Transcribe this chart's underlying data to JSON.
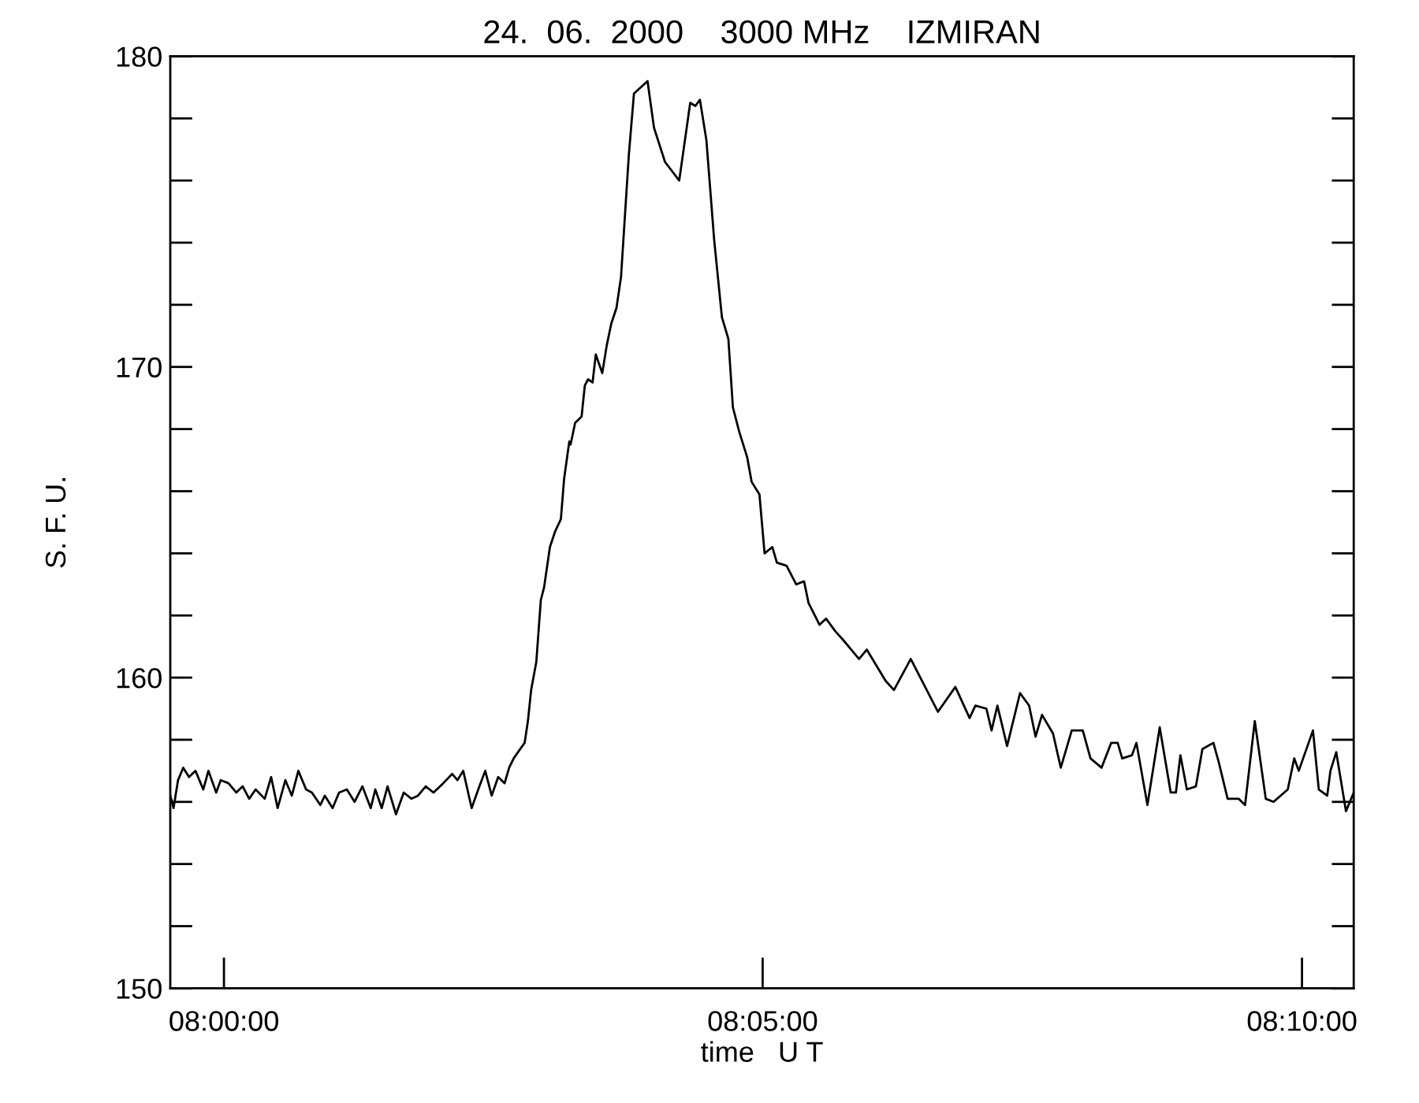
{
  "chart_data": {
    "type": "line",
    "title": "24.  06.  2000    3000 MHz    IZMIRAN",
    "xlabel": "time   U T",
    "ylabel": "S. F. U.",
    "xlim": [
      7.9917,
      8.1747
    ],
    "xticks": [
      {
        "value": 8.0,
        "label": "08:00:00"
      },
      {
        "value": 8.0833,
        "label": "08:05:00"
      },
      {
        "value": 8.1667,
        "label": "08:10:00"
      }
    ],
    "ylim": [
      150,
      180
    ],
    "yticks": [
      150,
      {
        "value": 152,
        "label": null
      },
      {
        "value": 154,
        "label": null
      },
      {
        "value": 156,
        "label": null
      },
      {
        "value": 158,
        "label": null
      },
      160,
      {
        "value": 162,
        "label": null
      },
      {
        "value": 164,
        "label": null
      },
      {
        "value": 166,
        "label": null
      },
      {
        "value": 168,
        "label": null
      },
      170,
      {
        "value": 172,
        "label": null
      },
      {
        "value": 174,
        "label": null
      },
      {
        "value": 176,
        "label": null
      },
      {
        "value": 178,
        "label": null
      },
      180
    ],
    "grid": false,
    "marker": "none",
    "line_style": "solid",
    "series": [
      {
        "color": "#000000",
        "x": [
          7.9917,
          7.9922,
          7.9929,
          7.9937,
          7.9946,
          7.9956,
          7.9968,
          7.9976,
          7.9988,
          7.9995,
          8.0007,
          8.0019,
          8.0029,
          8.0039,
          8.0049,
          8.0063,
          8.0073,
          8.0083,
          8.0095,
          8.0105,
          8.0115,
          8.0127,
          8.0136,
          8.0149,
          8.0156,
          8.0168,
          8.0178,
          8.019,
          8.0202,
          8.0214,
          8.0227,
          8.0234,
          8.0244,
          8.0253,
          8.0266,
          8.0278,
          8.029,
          8.03,
          8.0312,
          8.0324,
          8.0339,
          8.0353,
          8.0361,
          8.037,
          8.0383,
          8.0395,
          8.0404,
          8.0414,
          8.0424,
          8.0434,
          8.0441,
          8.0448,
          8.0458,
          8.0465,
          8.047,
          8.0475,
          8.0483,
          8.049,
          8.0495,
          8.0504,
          8.0512,
          8.0521,
          8.0526,
          8.0534,
          8.0536,
          8.0543,
          8.0553,
          8.0558,
          8.0563,
          8.057,
          8.0575,
          8.0585,
          8.0592,
          8.0599,
          8.0607,
          8.0614,
          8.0626,
          8.0634,
          8.0655,
          8.0665,
          8.0682,
          8.0704,
          8.0721,
          8.0729,
          8.0736,
          8.0746,
          8.0758,
          8.077,
          8.078,
          8.0787,
          8.0797,
          8.0809,
          8.0816,
          8.0828,
          8.0836,
          8.0848,
          8.0855,
          8.087,
          8.0885,
          8.0897,
          8.0904,
          8.0921,
          8.0931,
          8.0945,
          8.0958,
          8.097,
          8.0982,
          8.0994,
          8.1023,
          8.1036,
          8.1062,
          8.1104,
          8.1131,
          8.1153,
          8.1162,
          8.1179,
          8.1187,
          8.1196,
          8.1211,
          8.1231,
          8.1245,
          8.1255,
          8.1265,
          8.1282,
          8.1294,
          8.1311,
          8.1328,
          8.134,
          8.1357,
          8.1372,
          8.1382,
          8.1389,
          8.1404,
          8.1411,
          8.1428,
          8.1447,
          8.1464,
          8.1472,
          8.1479,
          8.1489,
          8.1503,
          8.1513,
          8.153,
          8.1538,
          8.1552,
          8.1569,
          8.1579,
          8.1594,
          8.1611,
          8.1623,
          8.1645,
          8.1655,
          8.1662,
          8.1684,
          8.1693,
          8.1706,
          8.1711,
          8.172,
          8.1735,
          8.1747
        ],
        "values": [
          156.2,
          155.8,
          156.7,
          157.1,
          156.8,
          157.0,
          156.4,
          157.0,
          156.3,
          156.7,
          156.6,
          156.3,
          156.5,
          156.1,
          156.4,
          156.1,
          156.8,
          155.8,
          156.7,
          156.2,
          157.0,
          156.4,
          156.3,
          155.9,
          156.2,
          155.8,
          156.3,
          156.4,
          156.0,
          156.5,
          155.8,
          156.4,
          155.8,
          156.5,
          155.6,
          156.3,
          156.1,
          156.2,
          156.5,
          156.3,
          156.6,
          156.9,
          156.7,
          157.0,
          155.8,
          156.5,
          157.0,
          156.2,
          156.8,
          156.6,
          157.1,
          157.4,
          157.7,
          157.9,
          158.6,
          159.6,
          160.5,
          162.5,
          162.9,
          164.2,
          164.7,
          165.1,
          166.4,
          167.6,
          167.5,
          168.2,
          168.4,
          169.4,
          169.6,
          169.5,
          170.4,
          169.8,
          170.7,
          171.4,
          171.9,
          172.9,
          176.8,
          178.8,
          179.2,
          177.7,
          176.6,
          176.0,
          178.5,
          178.4,
          178.6,
          177.3,
          174.1,
          171.6,
          170.9,
          168.7,
          167.9,
          167.1,
          166.3,
          165.9,
          164.0,
          164.2,
          163.7,
          163.6,
          163.0,
          163.1,
          162.4,
          161.7,
          161.9,
          161.5,
          161.2,
          160.9,
          160.6,
          160.9,
          159.9,
          159.6,
          160.6,
          158.9,
          159.7,
          158.7,
          159.1,
          159.0,
          158.3,
          159.1,
          157.8,
          159.5,
          159.1,
          158.1,
          158.8,
          158.2,
          157.1,
          158.3,
          158.3,
          157.4,
          157.1,
          157.9,
          157.9,
          157.4,
          157.5,
          157.9,
          155.9,
          158.4,
          156.3,
          156.3,
          157.5,
          156.4,
          156.5,
          157.7,
          157.9,
          157.3,
          156.1,
          156.1,
          155.9,
          158.6,
          156.1,
          156.0,
          156.4,
          157.4,
          157.0,
          158.3,
          156.4,
          156.2,
          157.0,
          157.6,
          155.7,
          156.3
        ]
      }
    ]
  }
}
